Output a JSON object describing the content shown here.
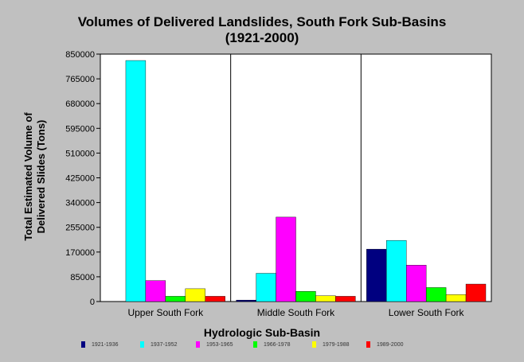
{
  "chart_data": {
    "type": "bar",
    "title": "Volumes of Delivered Landslides, South Fork Sub-Basins",
    "subtitle": "(1921-2000)",
    "xlabel": "Hydrologic Sub-Basin",
    "ylabel_line1": "Total Estimated Volume of",
    "ylabel_line2": "Delivered Slides (Tons)",
    "ylim": [
      0,
      850000
    ],
    "yticks": [
      "0",
      "85000",
      "170000",
      "255000",
      "340000",
      "425000",
      "510000",
      "595000",
      "680000",
      "765000",
      "850000"
    ],
    "grid": false,
    "legend_position": "bottom",
    "categories": [
      "Upper South Fork",
      "Middle South Fork",
      "Lower South Fork"
    ],
    "series": [
      {
        "name": "1921-1936",
        "color": "#000080",
        "values": [
          0,
          5000,
          180000
        ]
      },
      {
        "name": "1937-1952",
        "color": "#00ffff",
        "values": [
          828000,
          97000,
          210000
        ]
      },
      {
        "name": "1953-1965",
        "color": "#ff00ff",
        "values": [
          72000,
          290000,
          125000
        ]
      },
      {
        "name": "1966-1978",
        "color": "#00ff00",
        "values": [
          18000,
          35000,
          48000
        ]
      },
      {
        "name": "1979-1988",
        "color": "#ffff00",
        "values": [
          44000,
          20000,
          24000
        ]
      },
      {
        "name": "1989-2000",
        "color": "#ff0000",
        "values": [
          18000,
          18000,
          60000
        ]
      }
    ]
  }
}
